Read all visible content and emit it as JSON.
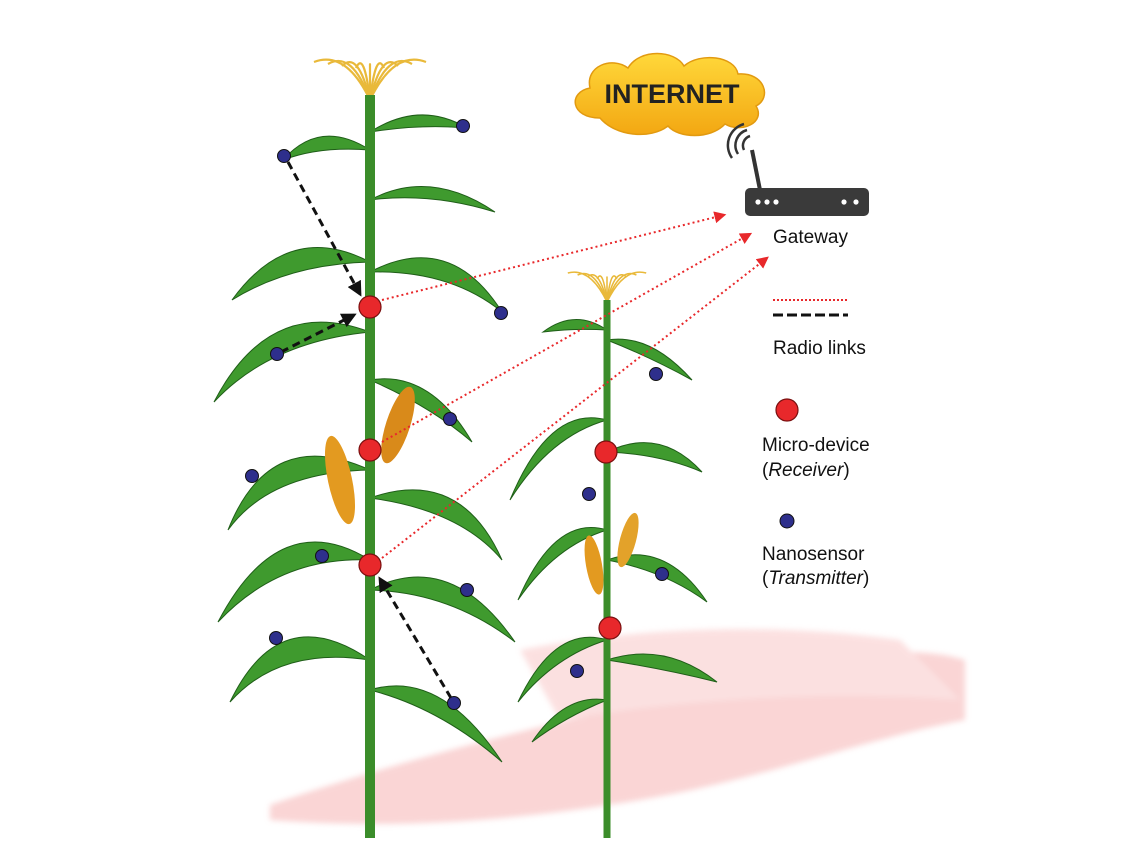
{
  "cloud": {
    "label": "INTERNET"
  },
  "gateway": {
    "label": "Gateway"
  },
  "legend": {
    "links": {
      "label": "Radio links"
    },
    "receiver": {
      "label": "Micro-device",
      "role_open": "(",
      "role": "Receiver",
      "role_close": ")"
    },
    "transmitter": {
      "label": "Nanosensor",
      "role_open": "(",
      "role": "Transmitter",
      "role_close": ")"
    }
  }
}
